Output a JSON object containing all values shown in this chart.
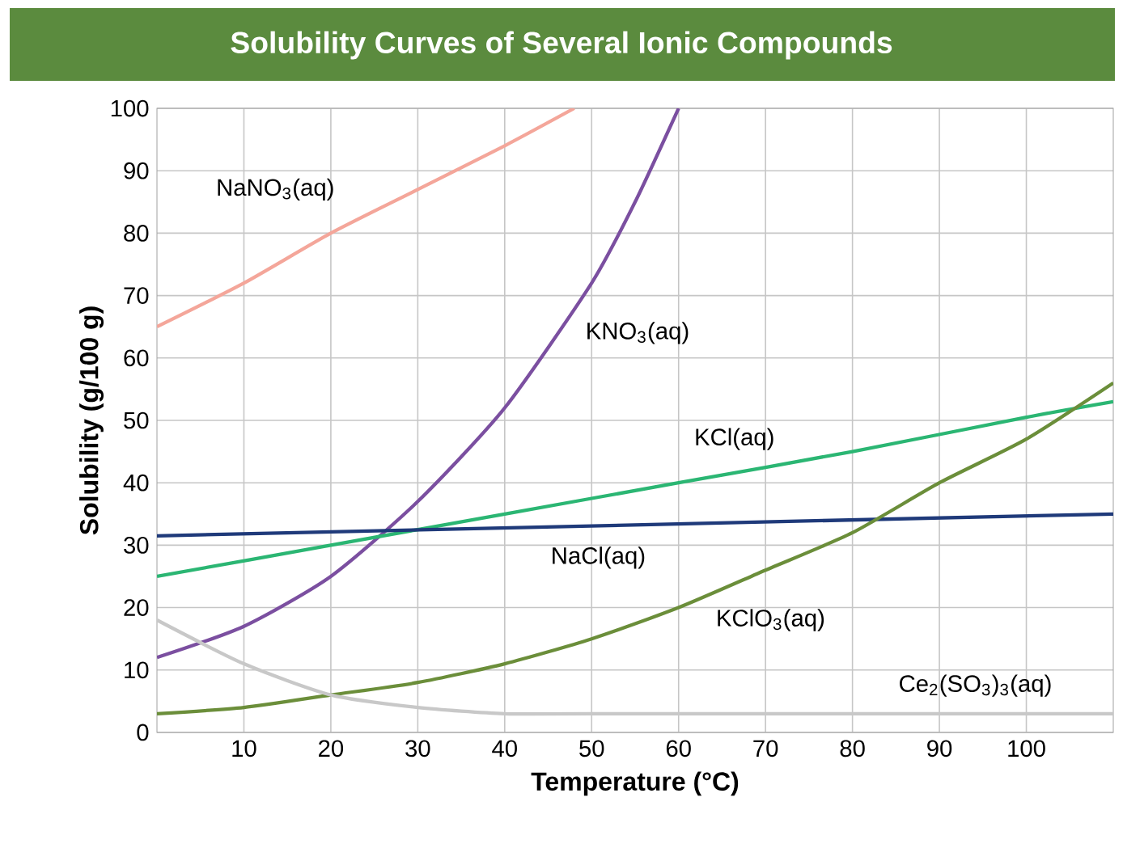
{
  "chart_data": {
    "type": "line",
    "title": "Solubility Curves of Several Ionic Compounds",
    "xlabel": "Temperature (°C)",
    "ylabel": "Solubility (g/100 g)",
    "xlim": [
      0,
      110
    ],
    "ylim": [
      0,
      100
    ],
    "xticks": [
      10,
      20,
      30,
      40,
      50,
      60,
      70,
      80,
      90,
      100
    ],
    "yticks": [
      0,
      10,
      20,
      30,
      40,
      50,
      60,
      70,
      80,
      90,
      100
    ],
    "grid": true,
    "marker": "none",
    "line_style": "solid",
    "series": [
      {
        "name": "NaNO$_{3}$(aq)",
        "color": "#f4a69a",
        "x": [
          0,
          10,
          20,
          30,
          40,
          48
        ],
        "values": [
          65,
          72,
          80,
          87,
          94,
          100
        ]
      },
      {
        "name": "KNO$_{3}$(aq)",
        "color": "#7b4fa0",
        "x": [
          0,
          10,
          20,
          30,
          40,
          50,
          55,
          60
        ],
        "values": [
          12,
          17,
          25,
          37,
          52,
          72,
          85,
          100
        ]
      },
      {
        "name": "KCl(aq)",
        "color": "#2bb673",
        "x": [
          0,
          20,
          40,
          60,
          80,
          100,
          110
        ],
        "values": [
          25,
          30,
          35,
          40,
          45,
          50.5,
          53
        ]
      },
      {
        "name": "NaCl(aq)",
        "color": "#1f3a7a",
        "x": [
          0,
          110
        ],
        "values": [
          31.5,
          35
        ]
      },
      {
        "name": "KClO$_{3}$(aq)",
        "color": "#6b8e3a",
        "x": [
          0,
          10,
          20,
          30,
          40,
          50,
          60,
          70,
          80,
          90,
          100,
          110
        ],
        "values": [
          3,
          4,
          6,
          8,
          11,
          15,
          20,
          26,
          32,
          40,
          47,
          56
        ]
      },
      {
        "name": "Ce$_{2}$(SO$_{3}$)$_{3}$(aq)",
        "color": "#c8c8c8",
        "x": [
          0,
          10,
          20,
          30,
          40,
          50,
          110
        ],
        "values": [
          18,
          11,
          6,
          4,
          3,
          3,
          3
        ]
      }
    ]
  }
}
